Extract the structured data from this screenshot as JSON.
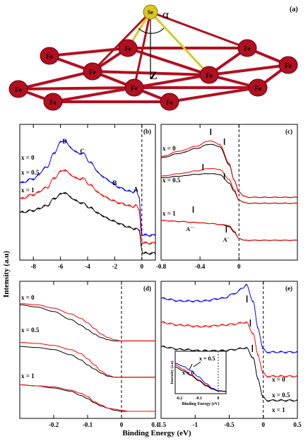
{
  "figure": {
    "ylabel": "Intensity (a.u)",
    "xlabel": "Binding Energy (eV)"
  },
  "panel_a": {
    "tag": "(a)",
    "atom_top": "Se",
    "atom_base": "Fe",
    "angle_label": "α",
    "height_label": "Z"
  },
  "colors": {
    "x0": "#0000ff",
    "x05": "#ff0000",
    "x1": "#000000",
    "lattice": "#b01020",
    "se": "#d8c820"
  },
  "chart_data": [
    {
      "panel": "(b)",
      "type": "line",
      "xlim": [
        -9,
        1
      ],
      "xticks": [
        "-8",
        "-6",
        "-4",
        "-2",
        "0"
      ],
      "vline_x": 0,
      "series": [
        {
          "name": "x = 0",
          "color": "#0000ff",
          "x": [
            -9,
            -8,
            -7,
            -6.5,
            -6,
            -5.7,
            -5.3,
            -4.8,
            -4.3,
            -3.8,
            -3,
            -2.4,
            -1.8,
            -1.2,
            -0.7,
            -0.45,
            -0.2,
            0,
            0.05,
            1
          ],
          "y": [
            48,
            52,
            62,
            74,
            84,
            86,
            80,
            75,
            74,
            66,
            55,
            50,
            45,
            42,
            40,
            42,
            35,
            5,
            2,
            2
          ]
        },
        {
          "name": "x = 0.5",
          "color": "#ff0000",
          "x": [
            -9,
            -8,
            -7,
            -6.5,
            -6,
            -5.7,
            -5.3,
            -4.8,
            -4.3,
            -3.8,
            -3,
            -2.4,
            -1.8,
            -1.2,
            -0.7,
            -0.45,
            -0.2,
            0,
            0.05,
            1
          ],
          "y": [
            34,
            38,
            44,
            52,
            58,
            60,
            56,
            52,
            52,
            46,
            38,
            34,
            31,
            29,
            27,
            29,
            24,
            -2,
            -5,
            -5
          ]
        },
        {
          "name": "x = 1",
          "color": "#000000",
          "x": [
            -9,
            -8,
            -7,
            -6.5,
            -6,
            -5.7,
            -5.3,
            -4.8,
            -4.3,
            -3.8,
            -3,
            -2.4,
            -1.8,
            -1.2,
            -0.7,
            -0.45,
            -0.2,
            0,
            0.05,
            1
          ],
          "y": [
            22,
            24,
            28,
            34,
            38,
            40,
            36,
            32,
            30,
            26,
            20,
            16,
            13,
            10,
            8,
            8,
            6,
            -10,
            -14,
            -14
          ]
        }
      ],
      "peaks": [
        {
          "label": "D",
          "x": -5.7
        },
        {
          "label": "C",
          "x": -4.4
        },
        {
          "label": "B",
          "x": -2.0
        },
        {
          "label": "A",
          "x": -0.45
        }
      ]
    },
    {
      "panel": "(c)",
      "type": "line",
      "xlim": [
        -0.8,
        0.6
      ],
      "xticks": [
        "-0.8",
        "-0.4",
        "0"
      ],
      "vline_x": 0,
      "series": [
        {
          "name": "x = 0",
          "color": "#000000",
          "x": [
            -0.8,
            -0.6,
            -0.45,
            -0.3,
            -0.2,
            -0.1,
            -0.05,
            0,
            0.05,
            0.1,
            0.6
          ],
          "y": [
            78,
            82,
            86,
            90,
            88,
            72,
            58,
            48,
            44,
            43,
            43
          ]
        },
        {
          "name": "x = 0",
          "color": "#ff0000",
          "x": [
            -0.8,
            -0.6,
            -0.45,
            -0.3,
            -0.2,
            -0.1,
            -0.05,
            0,
            0.05,
            0.1,
            0.6
          ],
          "y": [
            79,
            84,
            88,
            93,
            90,
            73,
            58,
            48,
            44,
            43,
            43
          ]
        },
        {
          "name": "x = 0.5",
          "color": "#000000",
          "x": [
            -0.8,
            -0.6,
            -0.45,
            -0.3,
            -0.2,
            -0.1,
            -0.05,
            0,
            0.05,
            0.1,
            0.6
          ],
          "y": [
            52,
            54,
            56,
            57,
            56,
            46,
            36,
            26,
            23,
            22,
            22
          ]
        },
        {
          "name": "x = 0.5",
          "color": "#ff0000",
          "x": [
            -0.8,
            -0.6,
            -0.45,
            -0.3,
            -0.2,
            -0.1,
            -0.05,
            0,
            0.05,
            0.1,
            0.6
          ],
          "y": [
            54,
            57,
            60,
            63,
            62,
            50,
            38,
            26,
            23,
            22,
            22
          ]
        },
        {
          "name": "x = 1",
          "color": "#000000",
          "x": [
            -0.8,
            -0.6,
            -0.45,
            -0.3,
            -0.2,
            -0.1,
            -0.05,
            0,
            0.05,
            0.1,
            0.6
          ],
          "y": [
            20,
            19,
            18,
            17,
            16,
            14,
            8,
            2,
            0,
            0,
            0
          ]
        },
        {
          "name": "x = 1",
          "color": "#ff0000",
          "x": [
            -0.8,
            -0.6,
            -0.45,
            -0.3,
            -0.2,
            -0.1,
            -0.05,
            0,
            0.05,
            0.1,
            0.6
          ],
          "y": [
            20,
            19,
            18,
            17,
            16,
            15,
            9,
            2,
            0,
            0,
            0
          ]
        }
      ],
      "markers": [
        {
          "row": "x = 0",
          "x": [
            -0.29,
            -0.15
          ]
        },
        {
          "row": "x = 0.5",
          "x": [
            -0.37,
            -0.15
          ]
        },
        {
          "row": "x = 1",
          "x": [
            -0.47,
            -0.13
          ]
        }
      ],
      "annotations": [
        {
          "label": "A´´",
          "x": -0.5
        },
        {
          "label": "A´",
          "x": -0.12
        }
      ]
    },
    {
      "panel": "(d)",
      "type": "line",
      "xlim": [
        -0.3,
        0.1
      ],
      "xticks": [
        "-0.2",
        "-0.1",
        "0",
        "0.1"
      ],
      "vline_x": 0,
      "series": [
        {
          "name": "x = 0",
          "color": "#000000",
          "x": [
            -0.3,
            -0.25,
            -0.2,
            -0.15,
            -0.12,
            -0.1,
            -0.08,
            -0.06,
            -0.04,
            -0.02,
            0,
            0.02,
            0.1
          ],
          "y": [
            88,
            86,
            82,
            75,
            70,
            66,
            62,
            59,
            57,
            56,
            56,
            56,
            56
          ]
        },
        {
          "name": "x = 0",
          "color": "#ff0000",
          "x": [
            -0.3,
            -0.25,
            -0.2,
            -0.15,
            -0.12,
            -0.1,
            -0.08,
            -0.06,
            -0.04,
            -0.02,
            0,
            0.02,
            0.1
          ],
          "y": [
            89,
            88,
            85,
            80,
            76,
            72,
            67,
            62,
            59,
            57,
            56,
            56,
            56
          ]
        },
        {
          "name": "x = 0.5",
          "color": "#000000",
          "x": [
            -0.3,
            -0.25,
            -0.2,
            -0.15,
            -0.12,
            -0.1,
            -0.08,
            -0.06,
            -0.04,
            -0.02,
            0,
            0.02,
            0.1
          ],
          "y": [
            70,
            69,
            67,
            62,
            57,
            52,
            48,
            44,
            41,
            40,
            40,
            40,
            40
          ]
        },
        {
          "name": "x = 0.5",
          "color": "#ff0000",
          "x": [
            -0.3,
            -0.25,
            -0.2,
            -0.15,
            -0.12,
            -0.1,
            -0.08,
            -0.06,
            -0.04,
            -0.02,
            0,
            0.02,
            0.1
          ],
          "y": [
            74,
            73,
            71,
            67,
            63,
            58,
            52,
            46,
            42,
            40,
            40,
            40,
            40
          ]
        },
        {
          "name": "x = 1",
          "color": "#000000",
          "x": [
            -0.3,
            -0.25,
            -0.2,
            -0.15,
            -0.12,
            -0.1,
            -0.08,
            -0.06,
            -0.04,
            -0.02,
            0,
            0.02,
            0.1
          ],
          "y": [
            30,
            29,
            27,
            24,
            20,
            17,
            13,
            10,
            8,
            6,
            5,
            5,
            5
          ]
        },
        {
          "name": "x = 1",
          "color": "#ff0000",
          "x": [
            -0.3,
            -0.25,
            -0.2,
            -0.15,
            -0.12,
            -0.1,
            -0.08,
            -0.06,
            -0.04,
            -0.02,
            0,
            0.02,
            0.1
          ],
          "y": [
            30,
            29,
            28,
            25,
            22,
            19,
            14,
            11,
            8,
            7,
            6,
            5,
            5
          ]
        }
      ]
    },
    {
      "panel": "(e)",
      "type": "line",
      "xlim": [
        -1.5,
        0.5
      ],
      "xticks": [
        "-1.5",
        "-1",
        "-0.5",
        "0",
        "0.5"
      ],
      "vline_x": 0,
      "series": [
        {
          "name": "x = 0",
          "color": "#0000ff",
          "x": [
            -1.5,
            -1.2,
            -0.9,
            -0.6,
            -0.4,
            -0.3,
            -0.25,
            -0.15,
            -0.08,
            0,
            0.05,
            0.5
          ],
          "y": [
            82,
            80,
            80,
            82,
            86,
            90,
            92,
            80,
            60,
            44,
            42,
            42
          ]
        },
        {
          "name": "x = 0.5",
          "color": "#ff0000",
          "x": [
            -1.5,
            -1.2,
            -0.9,
            -0.6,
            -0.4,
            -0.3,
            -0.25,
            -0.15,
            -0.08,
            0,
            0.05,
            0.5
          ],
          "y": [
            64,
            62,
            61,
            62,
            63,
            64,
            64,
            56,
            40,
            26,
            24,
            24
          ]
        },
        {
          "name": "x = 1",
          "color": "#000000",
          "x": [
            -1.5,
            -1.2,
            -0.9,
            -0.6,
            -0.4,
            -0.3,
            -0.25,
            -0.15,
            -0.08,
            0,
            0.05,
            0.5
          ],
          "y": [
            46,
            44,
            43,
            43,
            44,
            45,
            45,
            38,
            22,
            8,
            6,
            6
          ]
        }
      ],
      "markers": [
        {
          "row": "x = 0",
          "x": [
            -0.24
          ]
        },
        {
          "row": "x = 0.5",
          "x": [
            -0.19
          ]
        },
        {
          "row": "x = 1",
          "x": [
            -0.16
          ]
        }
      ],
      "inset": {
        "ylabel": "Intensity (a.u)",
        "xlabel": "Binding Energy (eV)",
        "xlim": [
          -0.22,
          0.04
        ],
        "xticks": [
          "-0.2",
          "-0.1",
          "0"
        ],
        "labels": [
          "x = 0.5",
          "x = 0"
        ],
        "series": [
          {
            "name": "x = 0",
            "color": "#0000ff",
            "x": [
              -0.22,
              -0.18,
              -0.14,
              -0.1,
              -0.06,
              -0.03,
              0,
              0.04
            ],
            "y": [
              80,
              72,
              60,
              44,
              26,
              14,
              8,
              6
            ]
          },
          {
            "name": "x = 0.5",
            "color": "#ff0000",
            "x": [
              -0.22,
              -0.18,
              -0.14,
              -0.1,
              -0.06,
              -0.03,
              0,
              0.04
            ],
            "y": [
              76,
              64,
              50,
              36,
              22,
              12,
              7,
              6
            ]
          },
          {
            "name": "x = 1",
            "color": "#000000",
            "x": [
              -0.22,
              -0.18,
              -0.14,
              -0.1,
              -0.06,
              -0.03,
              0,
              0.04
            ],
            "y": [
              70,
              60,
              48,
              34,
              20,
              12,
              7,
              6
            ]
          }
        ]
      }
    }
  ]
}
